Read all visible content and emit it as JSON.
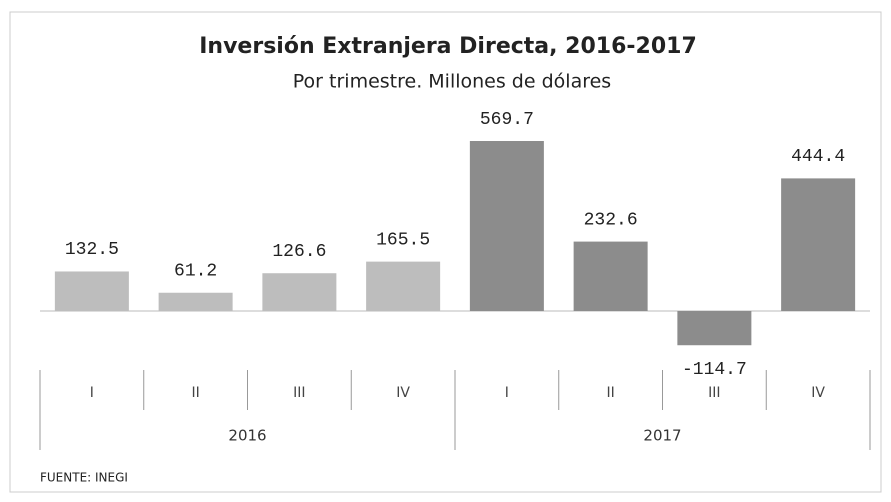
{
  "chart_data": {
    "type": "bar",
    "title": "Inversión Extranjera Directa, 2016-2017",
    "subtitle": "Por trimestre. Millones de dólares",
    "groups": [
      {
        "name": "2016",
        "color": "#bdbdbd",
        "categories": [
          "I",
          "II",
          "III",
          "IV"
        ],
        "values": [
          132.5,
          61.2,
          126.6,
          165.5
        ]
      },
      {
        "name": "2017",
        "color": "#8c8c8c",
        "categories": [
          "I",
          "II",
          "III",
          "IV"
        ],
        "values": [
          569.7,
          232.6,
          -114.7,
          444.4
        ]
      }
    ],
    "source": "FUENTE: INEGI"
  }
}
